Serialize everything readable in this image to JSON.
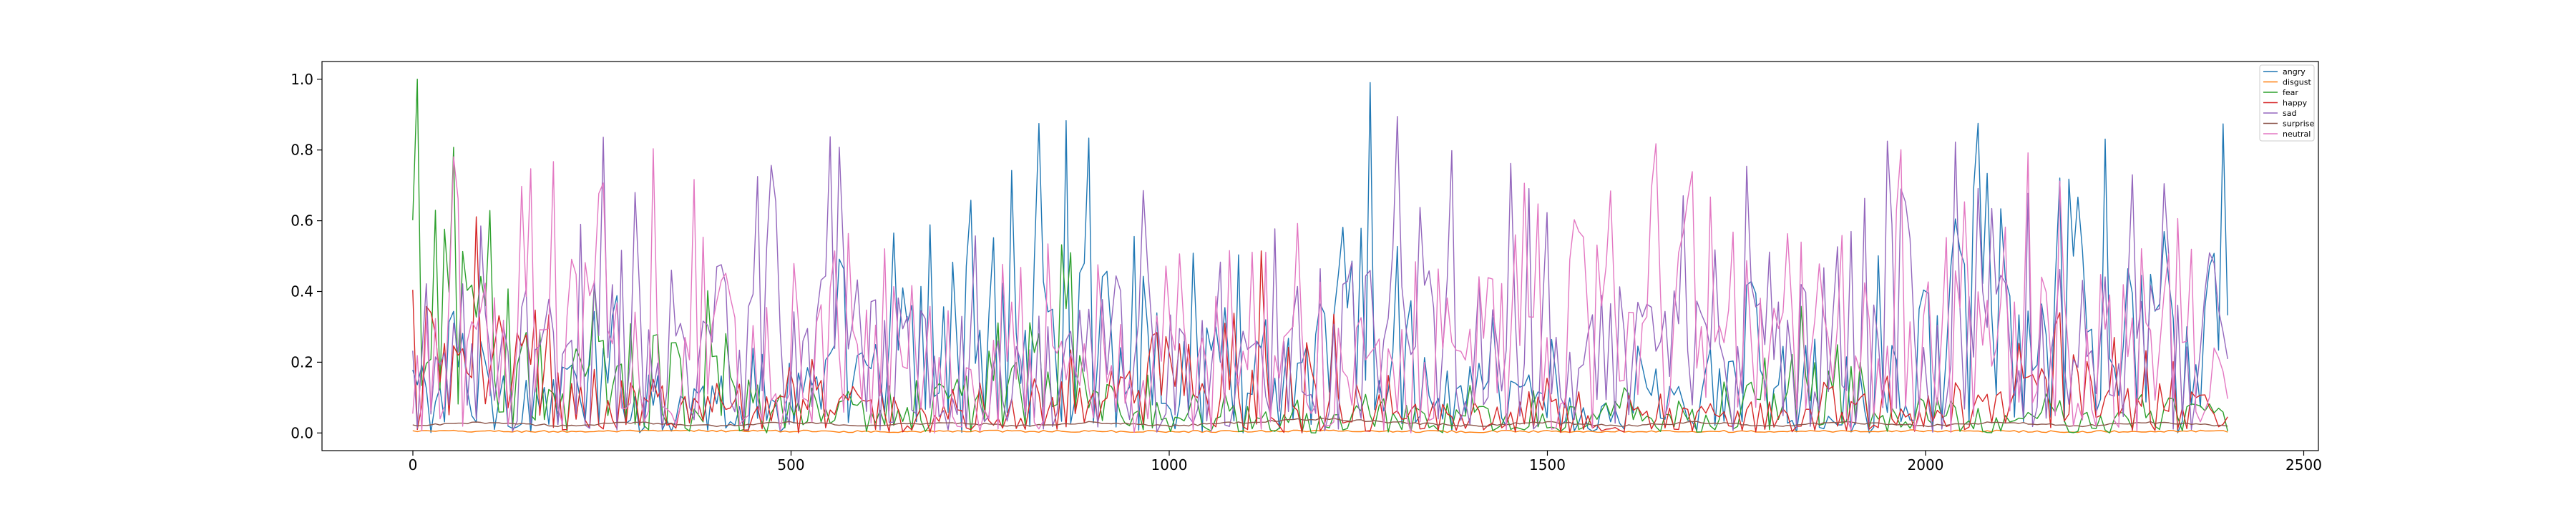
{
  "chart_data": {
    "type": "line",
    "title": "",
    "xlabel": "",
    "ylabel": "",
    "xlim": [
      -120,
      2520
    ],
    "ylim": [
      -0.05,
      1.05
    ],
    "x_ticks": [
      0,
      500,
      1000,
      1500,
      2000,
      2500
    ],
    "x_tick_labels": [
      "0",
      "500",
      "1000",
      "1500",
      "2000",
      "2500"
    ],
    "y_ticks": [
      0.0,
      0.2,
      0.4,
      0.6,
      0.8,
      1.0
    ],
    "y_tick_labels": [
      "0.0",
      "0.2",
      "0.4",
      "0.6",
      "0.8",
      "1.0"
    ],
    "grid": false,
    "legend_position": "top-right",
    "x_range": [
      0,
      2400
    ],
    "sample_step": 6,
    "series": [
      {
        "name": "angry",
        "color": "#1f77b4",
        "control_points": [
          [
            0,
            0.12
          ],
          [
            30,
            0.08
          ],
          [
            60,
            0.2
          ],
          [
            100,
            0.15
          ],
          [
            150,
            0.1
          ],
          [
            200,
            0.12
          ],
          [
            250,
            0.18
          ],
          [
            300,
            0.1
          ],
          [
            350,
            0.15
          ],
          [
            400,
            0.12
          ],
          [
            450,
            0.1
          ],
          [
            500,
            0.15
          ],
          [
            550,
            0.2
          ],
          [
            600,
            0.15
          ],
          [
            650,
            0.25
          ],
          [
            700,
            0.35
          ],
          [
            750,
            0.3
          ],
          [
            800,
            0.35
          ],
          [
            850,
            0.4
          ],
          [
            900,
            0.3
          ],
          [
            950,
            0.35
          ],
          [
            1000,
            0.2
          ],
          [
            1050,
            0.25
          ],
          [
            1100,
            0.3
          ],
          [
            1150,
            0.2
          ],
          [
            1200,
            0.25
          ],
          [
            1250,
            0.5
          ],
          [
            1300,
            0.3
          ],
          [
            1350,
            0.1
          ],
          [
            1400,
            0.15
          ],
          [
            1450,
            0.1
          ],
          [
            1500,
            0.12
          ],
          [
            1550,
            0.1
          ],
          [
            1600,
            0.08
          ],
          [
            1650,
            0.12
          ],
          [
            1700,
            0.1
          ],
          [
            1750,
            0.15
          ],
          [
            1800,
            0.2
          ],
          [
            1850,
            0.1
          ],
          [
            1900,
            0.15
          ],
          [
            1950,
            0.2
          ],
          [
            2000,
            0.25
          ],
          [
            2050,
            0.35
          ],
          [
            2100,
            0.3
          ],
          [
            2150,
            0.25
          ],
          [
            2200,
            0.35
          ],
          [
            2250,
            0.3
          ],
          [
            2300,
            0.35
          ],
          [
            2350,
            0.3
          ],
          [
            2400,
            0.35
          ]
        ]
      },
      {
        "name": "disgust",
        "color": "#ff7f0e",
        "control_points": [
          [
            0,
            0.005
          ],
          [
            200,
            0.004
          ],
          [
            400,
            0.006
          ],
          [
            600,
            0.004
          ],
          [
            800,
            0.005
          ],
          [
            1000,
            0.004
          ],
          [
            1200,
            0.006
          ],
          [
            1400,
            0.004
          ],
          [
            1600,
            0.005
          ],
          [
            1800,
            0.004
          ],
          [
            2000,
            0.006
          ],
          [
            2200,
            0.004
          ],
          [
            2400,
            0.005
          ]
        ]
      },
      {
        "name": "fear",
        "color": "#2ca02c",
        "control_points": [
          [
            0,
            0.55
          ],
          [
            20,
            0.6
          ],
          [
            40,
            0.5
          ],
          [
            60,
            0.45
          ],
          [
            80,
            0.35
          ],
          [
            100,
            0.25
          ],
          [
            150,
            0.2
          ],
          [
            200,
            0.15
          ],
          [
            250,
            0.2
          ],
          [
            300,
            0.15
          ],
          [
            350,
            0.25
          ],
          [
            400,
            0.15
          ],
          [
            450,
            0.1
          ],
          [
            500,
            0.08
          ],
          [
            550,
            0.1
          ],
          [
            600,
            0.08
          ],
          [
            650,
            0.1
          ],
          [
            700,
            0.12
          ],
          [
            750,
            0.1
          ],
          [
            800,
            0.15
          ],
          [
            850,
            0.25
          ],
          [
            900,
            0.1
          ],
          [
            950,
            0.08
          ],
          [
            1000,
            0.05
          ],
          [
            1050,
            0.06
          ],
          [
            1100,
            0.05
          ],
          [
            1150,
            0.04
          ],
          [
            1200,
            0.05
          ],
          [
            1250,
            0.06
          ],
          [
            1300,
            0.05
          ],
          [
            1350,
            0.06
          ],
          [
            1400,
            0.05
          ],
          [
            1450,
            0.06
          ],
          [
            1500,
            0.05
          ],
          [
            1550,
            0.06
          ],
          [
            1600,
            0.05
          ],
          [
            1650,
            0.06
          ],
          [
            1700,
            0.05
          ],
          [
            1750,
            0.06
          ],
          [
            1800,
            0.1
          ],
          [
            1850,
            0.15
          ],
          [
            1900,
            0.1
          ],
          [
            1950,
            0.05
          ],
          [
            2000,
            0.04
          ],
          [
            2050,
            0.03
          ],
          [
            2100,
            0.05
          ],
          [
            2150,
            0.04
          ],
          [
            2200,
            0.05
          ],
          [
            2250,
            0.04
          ],
          [
            2300,
            0.05
          ],
          [
            2350,
            0.06
          ],
          [
            2400,
            0.05
          ]
        ]
      },
      {
        "name": "happy",
        "color": "#d62728",
        "control_points": [
          [
            0,
            0.3
          ],
          [
            50,
            0.2
          ],
          [
            100,
            0.25
          ],
          [
            150,
            0.2
          ],
          [
            200,
            0.15
          ],
          [
            250,
            0.1
          ],
          [
            300,
            0.12
          ],
          [
            350,
            0.08
          ],
          [
            400,
            0.1
          ],
          [
            450,
            0.08
          ],
          [
            500,
            0.1
          ],
          [
            550,
            0.08
          ],
          [
            600,
            0.1
          ],
          [
            650,
            0.06
          ],
          [
            700,
            0.05
          ],
          [
            750,
            0.06
          ],
          [
            800,
            0.05
          ],
          [
            850,
            0.1
          ],
          [
            900,
            0.08
          ],
          [
            950,
            0.12
          ],
          [
            1000,
            0.15
          ],
          [
            1050,
            0.1
          ],
          [
            1100,
            0.15
          ],
          [
            1150,
            0.3
          ],
          [
            1200,
            0.15
          ],
          [
            1250,
            0.1
          ],
          [
            1300,
            0.06
          ],
          [
            1350,
            0.05
          ],
          [
            1400,
            0.06
          ],
          [
            1450,
            0.08
          ],
          [
            1500,
            0.1
          ],
          [
            1550,
            0.06
          ],
          [
            1600,
            0.05
          ],
          [
            1650,
            0.06
          ],
          [
            1700,
            0.05
          ],
          [
            1750,
            0.06
          ],
          [
            1800,
            0.05
          ],
          [
            1850,
            0.06
          ],
          [
            1900,
            0.08
          ],
          [
            1950,
            0.06
          ],
          [
            2000,
            0.05
          ],
          [
            2050,
            0.06
          ],
          [
            2100,
            0.1
          ],
          [
            2150,
            0.12
          ],
          [
            2200,
            0.15
          ],
          [
            2250,
            0.12
          ],
          [
            2300,
            0.1
          ],
          [
            2350,
            0.08
          ],
          [
            2400,
            0.06
          ]
        ]
      },
      {
        "name": "sad",
        "color": "#9467bd",
        "control_points": [
          [
            0,
            0.15
          ],
          [
            50,
            0.2
          ],
          [
            100,
            0.25
          ],
          [
            150,
            0.3
          ],
          [
            200,
            0.3
          ],
          [
            250,
            0.35
          ],
          [
            300,
            0.35
          ],
          [
            350,
            0.3
          ],
          [
            400,
            0.35
          ],
          [
            450,
            0.3
          ],
          [
            500,
            0.3
          ],
          [
            550,
            0.35
          ],
          [
            600,
            0.3
          ],
          [
            650,
            0.3
          ],
          [
            700,
            0.25
          ],
          [
            750,
            0.25
          ],
          [
            800,
            0.25
          ],
          [
            850,
            0.2
          ],
          [
            900,
            0.25
          ],
          [
            950,
            0.3
          ],
          [
            1000,
            0.3
          ],
          [
            1050,
            0.25
          ],
          [
            1100,
            0.3
          ],
          [
            1150,
            0.3
          ],
          [
            1200,
            0.35
          ],
          [
            1250,
            0.3
          ],
          [
            1300,
            0.35
          ],
          [
            1350,
            0.3
          ],
          [
            1400,
            0.3
          ],
          [
            1450,
            0.3
          ],
          [
            1500,
            0.3
          ],
          [
            1550,
            0.25
          ],
          [
            1600,
            0.3
          ],
          [
            1650,
            0.25
          ],
          [
            1700,
            0.25
          ],
          [
            1750,
            0.3
          ],
          [
            1800,
            0.3
          ],
          [
            1850,
            0.35
          ],
          [
            1900,
            0.45
          ],
          [
            1950,
            0.35
          ],
          [
            2000,
            0.35
          ],
          [
            2050,
            0.3
          ],
          [
            2100,
            0.3
          ],
          [
            2150,
            0.25
          ],
          [
            2200,
            0.3
          ],
          [
            2250,
            0.3
          ],
          [
            2300,
            0.35
          ],
          [
            2350,
            0.4
          ],
          [
            2400,
            0.3
          ]
        ]
      },
      {
        "name": "surprise",
        "color": "#8c564b",
        "control_points": [
          [
            0,
            0.02
          ],
          [
            100,
            0.03
          ],
          [
            200,
            0.02
          ],
          [
            300,
            0.03
          ],
          [
            400,
            0.02
          ],
          [
            500,
            0.03
          ],
          [
            600,
            0.02
          ],
          [
            700,
            0.03
          ],
          [
            800,
            0.02
          ],
          [
            900,
            0.03
          ],
          [
            1000,
            0.02
          ],
          [
            1100,
            0.03
          ],
          [
            1200,
            0.04
          ],
          [
            1300,
            0.03
          ],
          [
            1400,
            0.02
          ],
          [
            1500,
            0.03
          ],
          [
            1600,
            0.02
          ],
          [
            1700,
            0.03
          ],
          [
            1800,
            0.02
          ],
          [
            1900,
            0.03
          ],
          [
            2000,
            0.02
          ],
          [
            2100,
            0.03
          ],
          [
            2200,
            0.02
          ],
          [
            2300,
            0.03
          ],
          [
            2400,
            0.02
          ]
        ]
      },
      {
        "name": "neutral",
        "color": "#e377c2",
        "control_points": [
          [
            0,
            0.2
          ],
          [
            50,
            0.3
          ],
          [
            100,
            0.3
          ],
          [
            150,
            0.3
          ],
          [
            200,
            0.35
          ],
          [
            250,
            0.3
          ],
          [
            300,
            0.35
          ],
          [
            350,
            0.3
          ],
          [
            400,
            0.3
          ],
          [
            450,
            0.35
          ],
          [
            500,
            0.3
          ],
          [
            550,
            0.3
          ],
          [
            600,
            0.25
          ],
          [
            650,
            0.3
          ],
          [
            700,
            0.25
          ],
          [
            750,
            0.2
          ],
          [
            800,
            0.25
          ],
          [
            850,
            0.2
          ],
          [
            900,
            0.2
          ],
          [
            950,
            0.25
          ],
          [
            1000,
            0.2
          ],
          [
            1050,
            0.25
          ],
          [
            1100,
            0.2
          ],
          [
            1150,
            0.2
          ],
          [
            1200,
            0.25
          ],
          [
            1250,
            0.2
          ],
          [
            1300,
            0.2
          ],
          [
            1350,
            0.25
          ],
          [
            1400,
            0.3
          ],
          [
            1450,
            0.3
          ],
          [
            1500,
            0.3
          ],
          [
            1550,
            0.45
          ],
          [
            1600,
            0.4
          ],
          [
            1650,
            0.3
          ],
          [
            1700,
            0.3
          ],
          [
            1750,
            0.25
          ],
          [
            1800,
            0.3
          ],
          [
            1850,
            0.25
          ],
          [
            1900,
            0.2
          ],
          [
            1950,
            0.3
          ],
          [
            2000,
            0.3
          ],
          [
            2050,
            0.25
          ],
          [
            2100,
            0.3
          ],
          [
            2150,
            0.3
          ],
          [
            2200,
            0.25
          ],
          [
            2250,
            0.3
          ],
          [
            2300,
            0.25
          ],
          [
            2350,
            0.3
          ],
          [
            2400,
            0.25
          ]
        ]
      }
    ]
  }
}
